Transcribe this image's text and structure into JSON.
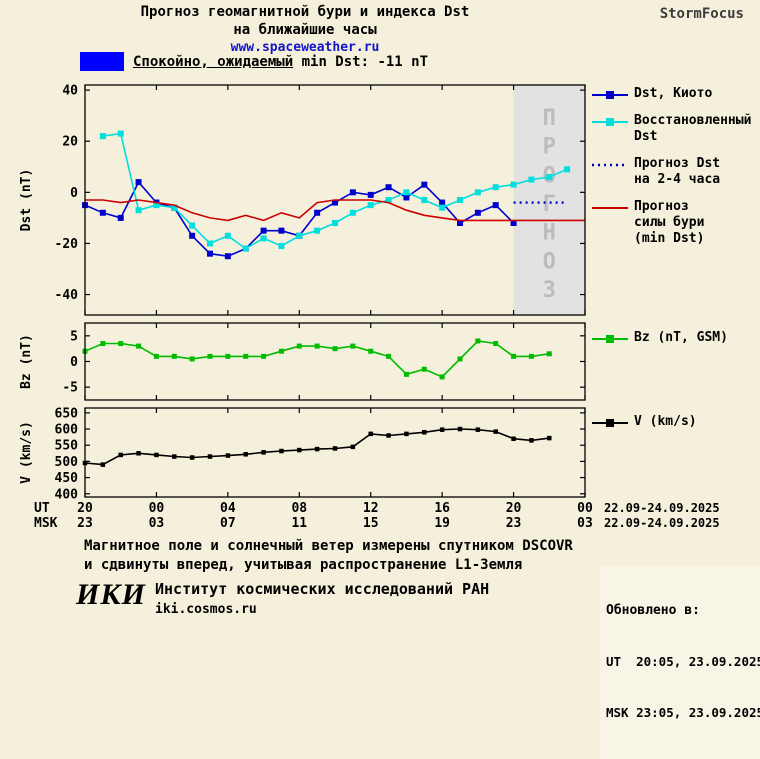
{
  "header": {
    "title_line1": "Прогноз геомагнитной бури и индекса Dst",
    "title_line2": "на ближайшие часы",
    "site": "www.spaceweather.ru",
    "brand": "StormFocus"
  },
  "status": {
    "level_text": "Спокойно, ожидаемый",
    "detail_text": " min Dst: -11 nT",
    "swatch_color": "#0000ff"
  },
  "chart_data": {
    "type": "line",
    "title": "Прогноз геомагнитной бури и индекса Dst на ближайшие часы",
    "x_domain": [
      0,
      28
    ],
    "x_ticks": {
      "hours": [
        0,
        4,
        8,
        12,
        16,
        20,
        24,
        28
      ],
      "ut_labels": [
        "20",
        "00",
        "04",
        "08",
        "12",
        "16",
        "20",
        "00"
      ],
      "msk_labels": [
        "23",
        "03",
        "07",
        "11",
        "15",
        "19",
        "23",
        "03"
      ],
      "ut_row_label": "UT",
      "msk_row_label": "MSK",
      "ut_date_range": "22.09-24.09.2025",
      "msk_date_range": "22.09-24.09.2025"
    },
    "forecast_band": {
      "start": 24,
      "end": 28,
      "label": "ПРОГНОЗ",
      "fill": "#e2e2e2",
      "text_color": "#bcbcbc"
    },
    "panels": [
      {
        "id": "dst",
        "ylabel": "Dst (nT)",
        "ylim": [
          -48,
          42
        ],
        "yticks": [
          40,
          20,
          0,
          -20,
          -40
        ],
        "series": [
          {
            "name": "Dst, Киото",
            "color": "#0000cc",
            "marker": "square",
            "dash": "solid",
            "x": [
              0,
              1,
              2,
              3,
              4,
              5,
              6,
              7,
              8,
              9,
              10,
              11,
              12,
              13,
              14,
              15,
              16,
              17,
              18,
              19,
              20,
              21,
              22,
              23,
              24
            ],
            "y": [
              -5,
              -8,
              -10,
              4,
              -4,
              -6,
              -17,
              -24,
              -25,
              -22,
              -15,
              -15,
              -17,
              -8,
              -4,
              0,
              -1,
              2,
              -2,
              3,
              -4,
              -12,
              -8,
              -5,
              -12
            ]
          },
          {
            "name": "Восстановленный Dst",
            "color": "#00dede",
            "marker": "square",
            "dash": "solid",
            "x": [
              1,
              2,
              3,
              4,
              5,
              6,
              7,
              8,
              9,
              10,
              11,
              12,
              13,
              14,
              15,
              16,
              17,
              18,
              19,
              20,
              21,
              22,
              23,
              24,
              25,
              26,
              27
            ],
            "y": [
              22,
              23,
              -7,
              -5,
              -6,
              -13,
              -20,
              -17,
              -22,
              -18,
              -21,
              -17,
              -15,
              -12,
              -8,
              -5,
              -3,
              0,
              -3,
              -6,
              -3,
              0,
              2,
              3,
              5,
              6,
              9
            ]
          },
          {
            "name": "Прогноз Dst на 2-4 часа",
            "color": "#0000cc",
            "marker": "none",
            "dash": "dotted",
            "x": [
              24,
              25,
              26,
              27
            ],
            "y": [
              -4,
              -4,
              -4,
              -4
            ]
          },
          {
            "name": "Прогноз силы бури (min Dst)",
            "color": "#cc0000",
            "marker": "none",
            "dash": "solid",
            "x": [
              0,
              1,
              2,
              3,
              4,
              5,
              6,
              7,
              8,
              9,
              10,
              11,
              12,
              13,
              14,
              15,
              16,
              17,
              18,
              19,
              20,
              21,
              22,
              23,
              24,
              25,
              26,
              27,
              28
            ],
            "y": [
              -3,
              -3,
              -4,
              -3,
              -4,
              -5,
              -8,
              -10,
              -11,
              -9,
              -11,
              -8,
              -10,
              -4,
              -3,
              -3,
              -3,
              -4,
              -7,
              -9,
              -10,
              -11,
              -11,
              -11,
              -11,
              -11,
              -11,
              -11,
              -11
            ]
          }
        ],
        "legend": [
          {
            "lines": [
              "Dst, Киото"
            ],
            "color": "#0000cc",
            "marker": "square",
            "dash": "solid"
          },
          {
            "lines": [
              "Восстановленный",
              "Dst"
            ],
            "color": "#00dede",
            "marker": "square",
            "dash": "solid"
          },
          {
            "lines": [
              "Прогноз Dst",
              "на 2-4 часа"
            ],
            "color": "#0000cc",
            "marker": "none",
            "dash": "dotted"
          },
          {
            "lines": [
              "Прогноз",
              "силы бури",
              "(min Dst)"
            ],
            "color": "#cc0000",
            "marker": "none",
            "dash": "solid"
          }
        ]
      },
      {
        "id": "bz",
        "ylabel": "Bz (nT)",
        "ylim": [
          -7.5,
          7.5
        ],
        "yticks": [
          5,
          0,
          -5
        ],
        "series": [
          {
            "name": "Bz (nT, GSM)",
            "color": "#00bb00",
            "marker": "square",
            "dash": "solid",
            "x": [
              0,
              1,
              2,
              3,
              4,
              5,
              6,
              7,
              8,
              9,
              10,
              11,
              12,
              13,
              14,
              15,
              16,
              17,
              18,
              19,
              20,
              21,
              22,
              23,
              24,
              25,
              26
            ],
            "y": [
              2,
              3.5,
              3.5,
              3,
              1,
              1,
              0.5,
              1,
              1,
              1,
              1,
              2,
              3,
              3,
              2.5,
              3,
              2,
              1,
              -2.5,
              -1.5,
              -3,
              0.5,
              4,
              3.5,
              1,
              1,
              1.5
            ]
          }
        ],
        "legend": [
          {
            "lines": [
              "Bz (nT, GSM)"
            ],
            "color": "#00bb00",
            "marker": "square",
            "dash": "solid"
          }
        ]
      },
      {
        "id": "v",
        "ylabel": "V (km/s)",
        "ylim": [
          390,
          665
        ],
        "yticks": [
          650,
          600,
          550,
          500,
          450,
          400
        ],
        "series": [
          {
            "name": "V (km/s)",
            "color": "#000000",
            "marker": "square",
            "dash": "solid",
            "x": [
              0,
              1,
              2,
              3,
              4,
              5,
              6,
              7,
              8,
              9,
              10,
              11,
              12,
              13,
              14,
              15,
              16,
              17,
              18,
              19,
              20,
              21,
              22,
              23,
              24,
              25,
              26
            ],
            "y": [
              495,
              490,
              520,
              525,
              520,
              515,
              512,
              515,
              518,
              522,
              528,
              532,
              535,
              538,
              540,
              545,
              585,
              580,
              585,
              590,
              598,
              600,
              598,
              592,
              570,
              565,
              572
            ]
          }
        ],
        "legend": [
          {
            "lines": [
              "V (km/s)"
            ],
            "color": "#000000",
            "marker": "square",
            "dash": "solid"
          }
        ]
      }
    ]
  },
  "footnote": {
    "line1": "Магнитное поле и солнечный ветер измерены спутником DSCOVR",
    "line2": "и сдвинуты вперед, учитывая распространение L1-Земля"
  },
  "footer": {
    "logo": "ИКИ",
    "institute": "Институт космических исследований РАН",
    "site": "iki.cosmos.ru",
    "updated_label": "Обновлено в:",
    "updated_ut": "UT  20:05, 23.09.2025",
    "updated_msk": "MSK 23:05, 23.09.2025"
  }
}
